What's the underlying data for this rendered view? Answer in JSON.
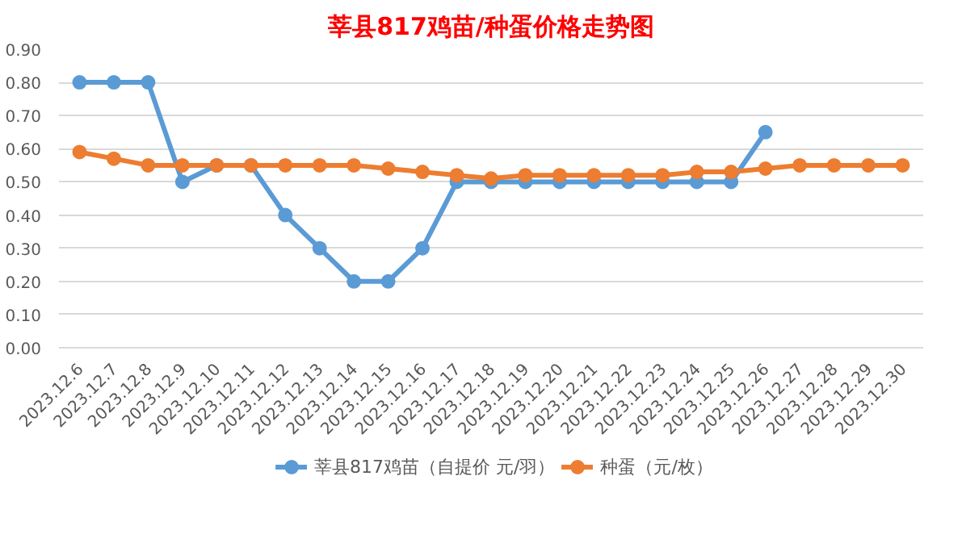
{
  "chart_data": {
    "type": "line",
    "title": "莘县817鸡苗/种蛋价格走势图",
    "categories": [
      "2023.12.6",
      "2023.12.7",
      "2023.12.8",
      "2023.12.9",
      "2023.12.10",
      "2023.12.11",
      "2023.12.12",
      "2023.12.13",
      "2023.12.14",
      "2023.12.15",
      "2023.12.16",
      "2023.12.17",
      "2023.12.18",
      "2023.12.19",
      "2023.12.20",
      "2023.12.21",
      "2023.12.22",
      "2023.12.23",
      "2023.12.24",
      "2023.12.25",
      "2023.12.26",
      "2023.12.27",
      "2023.12.28",
      "2023.12.29",
      "2023.12.30"
    ],
    "series": [
      {
        "name": "莘县817鸡苗（自提价 元/羽）",
        "color": "#5b9bd5",
        "values": [
          0.8,
          0.8,
          0.8,
          0.5,
          0.55,
          0.55,
          0.4,
          0.3,
          0.2,
          0.2,
          0.3,
          0.5,
          0.5,
          0.5,
          0.5,
          0.5,
          0.5,
          0.5,
          0.5,
          0.5,
          0.65,
          null,
          null,
          null,
          null
        ]
      },
      {
        "name": "种蛋（元/枚）",
        "color": "#ed7d31",
        "values": [
          0.59,
          0.57,
          0.55,
          0.55,
          0.55,
          0.55,
          0.55,
          0.55,
          0.55,
          0.54,
          0.53,
          0.52,
          0.51,
          0.52,
          0.52,
          0.52,
          0.52,
          0.52,
          0.53,
          0.53,
          0.54,
          0.55,
          0.55,
          0.55,
          0.55
        ]
      }
    ],
    "ylim": [
      0,
      0.9
    ],
    "yticks": [
      {
        "value": 0,
        "label": "0.00"
      },
      {
        "value": 0.1,
        "label": "0.10"
      },
      {
        "value": 0.2,
        "label": "0.20"
      },
      {
        "value": 0.3,
        "label": "0.30"
      },
      {
        "value": 0.4,
        "label": "0.40"
      },
      {
        "value": 0.5,
        "label": "0.50"
      },
      {
        "value": 0.6,
        "label": "0.60"
      },
      {
        "value": 0.7,
        "label": "0.70"
      },
      {
        "value": 0.8,
        "label": "0.80"
      },
      {
        "value": 0.9,
        "label": "0.90"
      }
    ],
    "grid": "y",
    "legend": "bottom",
    "marker": "circle",
    "line_style": "solid"
  }
}
